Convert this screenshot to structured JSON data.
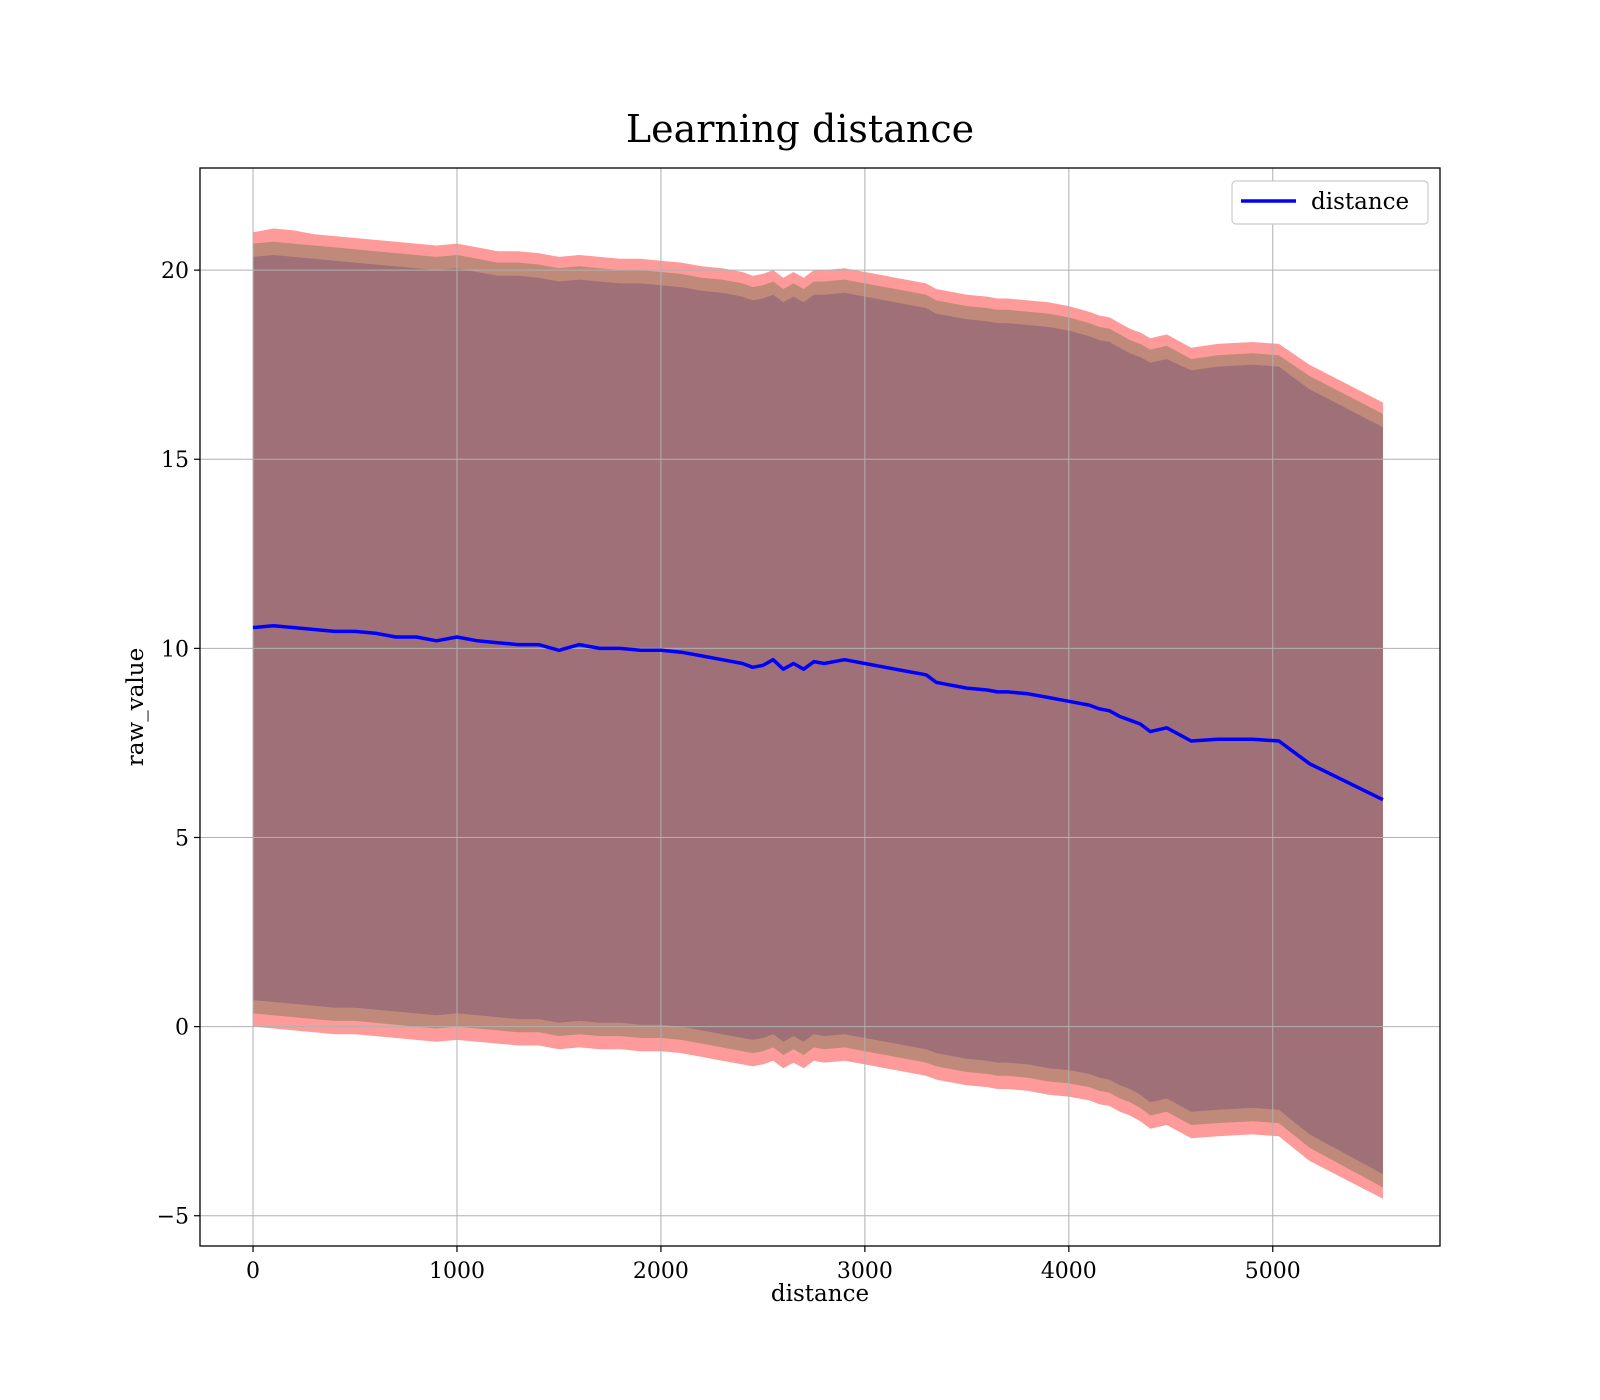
{
  "chart_data": {
    "type": "line",
    "title": "Learning distance",
    "xlabel": "distance",
    "ylabel": "raw_value",
    "xlim": [
      -260,
      5820
    ],
    "ylim": [
      -5.8,
      22.7
    ],
    "xticks": [
      0,
      1000,
      2000,
      3000,
      4000,
      5000
    ],
    "xtick_labels": [
      "0",
      "1000",
      "2000",
      "3000",
      "4000",
      "5000"
    ],
    "yticks": [
      -5,
      0,
      5,
      10,
      15,
      20
    ],
    "ytick_labels": [
      "−5",
      "0",
      "5",
      "10",
      "15",
      "20"
    ],
    "grid": true,
    "legend": {
      "position": "top-right",
      "entries": [
        "distance"
      ]
    },
    "colors": {
      "line": "#0000ff",
      "band_outer": "#ff9a9a",
      "band_middle": "#c08a7a",
      "band_inner": "#a07078",
      "grid": "#b0b0b0"
    },
    "series": [
      {
        "name": "distance",
        "x": [
          0,
          100,
          200,
          300,
          400,
          500,
          600,
          700,
          800,
          900,
          1000,
          1100,
          1200,
          1300,
          1400,
          1500,
          1600,
          1700,
          1800,
          1900,
          2000,
          2100,
          2200,
          2300,
          2400,
          2450,
          2500,
          2550,
          2600,
          2650,
          2700,
          2750,
          2800,
          2900,
          3000,
          3100,
          3200,
          3300,
          3350,
          3400,
          3500,
          3600,
          3650,
          3700,
          3800,
          3900,
          4000,
          4100,
          4150,
          4200,
          4250,
          4300,
          4350,
          4400,
          4480,
          4600,
          4730,
          4900,
          5030,
          5180,
          5540
        ],
        "values": [
          10.55,
          10.6,
          10.55,
          10.5,
          10.45,
          10.45,
          10.4,
          10.3,
          10.3,
          10.2,
          10.3,
          10.2,
          10.15,
          10.1,
          10.1,
          9.95,
          10.1,
          10.0,
          10.0,
          9.95,
          9.95,
          9.9,
          9.8,
          9.7,
          9.6,
          9.5,
          9.55,
          9.7,
          9.45,
          9.6,
          9.45,
          9.65,
          9.6,
          9.7,
          9.6,
          9.5,
          9.4,
          9.3,
          9.1,
          9.05,
          8.95,
          8.9,
          8.85,
          8.85,
          8.8,
          8.7,
          8.6,
          8.5,
          8.4,
          8.35,
          8.2,
          8.1,
          8.0,
          7.8,
          7.9,
          7.55,
          7.6,
          7.6,
          7.55,
          6.95,
          6.0
        ]
      }
    ],
    "band_outer": {
      "upper": [
        21.0,
        21.1,
        21.05,
        20.95,
        20.9,
        20.85,
        20.8,
        20.75,
        20.7,
        20.65,
        20.7,
        20.6,
        20.5,
        20.5,
        20.45,
        20.35,
        20.4,
        20.35,
        20.3,
        20.3,
        20.25,
        20.2,
        20.1,
        20.05,
        19.95,
        19.85,
        19.9,
        20.0,
        19.8,
        19.95,
        19.8,
        20.0,
        20.0,
        20.05,
        19.95,
        19.85,
        19.75,
        19.65,
        19.5,
        19.45,
        19.35,
        19.3,
        19.25,
        19.25,
        19.2,
        19.15,
        19.05,
        18.9,
        18.8,
        18.75,
        18.6,
        18.45,
        18.35,
        18.2,
        18.3,
        17.95,
        18.05,
        18.1,
        18.05,
        17.5,
        16.5
      ],
      "lower": [
        0.0,
        -0.05,
        -0.1,
        -0.15,
        -0.2,
        -0.2,
        -0.25,
        -0.3,
        -0.35,
        -0.4,
        -0.35,
        -0.4,
        -0.45,
        -0.5,
        -0.5,
        -0.6,
        -0.55,
        -0.6,
        -0.6,
        -0.65,
        -0.65,
        -0.7,
        -0.8,
        -0.9,
        -1.0,
        -1.05,
        -1.0,
        -0.9,
        -1.1,
        -0.95,
        -1.1,
        -0.9,
        -0.95,
        -0.9,
        -1.0,
        -1.1,
        -1.2,
        -1.3,
        -1.4,
        -1.45,
        -1.55,
        -1.6,
        -1.65,
        -1.65,
        -1.7,
        -1.8,
        -1.85,
        -1.95,
        -2.05,
        -2.1,
        -2.25,
        -2.35,
        -2.5,
        -2.7,
        -2.6,
        -2.95,
        -2.9,
        -2.85,
        -2.9,
        -3.55,
        -4.55
      ]
    },
    "band_middle": {
      "upper": [
        20.7,
        20.75,
        20.7,
        20.65,
        20.6,
        20.55,
        20.5,
        20.45,
        20.4,
        20.35,
        20.4,
        20.3,
        20.2,
        20.2,
        20.15,
        20.05,
        20.1,
        20.05,
        20.0,
        20.0,
        19.95,
        19.9,
        19.8,
        19.75,
        19.65,
        19.55,
        19.6,
        19.7,
        19.5,
        19.65,
        19.5,
        19.7,
        19.7,
        19.75,
        19.65,
        19.55,
        19.45,
        19.35,
        19.2,
        19.15,
        19.05,
        19.0,
        18.95,
        18.95,
        18.9,
        18.85,
        18.75,
        18.6,
        18.5,
        18.45,
        18.3,
        18.15,
        18.05,
        17.9,
        18.0,
        17.65,
        17.75,
        17.8,
        17.75,
        17.2,
        16.2
      ],
      "lower": [
        0.35,
        0.3,
        0.25,
        0.2,
        0.15,
        0.15,
        0.1,
        0.05,
        0.0,
        -0.05,
        0.0,
        -0.05,
        -0.1,
        -0.15,
        -0.15,
        -0.25,
        -0.2,
        -0.25,
        -0.25,
        -0.3,
        -0.3,
        -0.35,
        -0.45,
        -0.55,
        -0.65,
        -0.7,
        -0.65,
        -0.55,
        -0.75,
        -0.6,
        -0.75,
        -0.55,
        -0.6,
        -0.55,
        -0.65,
        -0.75,
        -0.85,
        -0.95,
        -1.05,
        -1.1,
        -1.2,
        -1.25,
        -1.3,
        -1.3,
        -1.35,
        -1.45,
        -1.5,
        -1.6,
        -1.7,
        -1.75,
        -1.9,
        -2.0,
        -2.15,
        -2.35,
        -2.25,
        -2.6,
        -2.55,
        -2.5,
        -2.55,
        -3.2,
        -4.25
      ]
    },
    "band_inner": {
      "upper": [
        20.35,
        20.4,
        20.35,
        20.3,
        20.25,
        20.2,
        20.15,
        20.1,
        20.05,
        20.0,
        20.05,
        19.95,
        19.85,
        19.85,
        19.8,
        19.7,
        19.75,
        19.7,
        19.65,
        19.65,
        19.6,
        19.55,
        19.45,
        19.4,
        19.3,
        19.2,
        19.25,
        19.35,
        19.15,
        19.3,
        19.15,
        19.35,
        19.35,
        19.4,
        19.3,
        19.2,
        19.1,
        19.0,
        18.85,
        18.8,
        18.7,
        18.65,
        18.6,
        18.6,
        18.55,
        18.5,
        18.4,
        18.25,
        18.15,
        18.1,
        17.95,
        17.8,
        17.7,
        17.55,
        17.65,
        17.35,
        17.45,
        17.5,
        17.45,
        16.85,
        15.85
      ],
      "lower": [
        0.7,
        0.65,
        0.6,
        0.55,
        0.5,
        0.5,
        0.45,
        0.4,
        0.35,
        0.3,
        0.35,
        0.3,
        0.25,
        0.2,
        0.2,
        0.1,
        0.15,
        0.1,
        0.1,
        0.05,
        0.05,
        0.0,
        -0.1,
        -0.2,
        -0.3,
        -0.35,
        -0.3,
        -0.2,
        -0.4,
        -0.25,
        -0.4,
        -0.2,
        -0.25,
        -0.2,
        -0.3,
        -0.4,
        -0.5,
        -0.6,
        -0.7,
        -0.75,
        -0.85,
        -0.9,
        -0.95,
        -0.95,
        -1.0,
        -1.1,
        -1.15,
        -1.25,
        -1.35,
        -1.4,
        -1.55,
        -1.65,
        -1.8,
        -2.0,
        -1.9,
        -2.25,
        -2.2,
        -2.15,
        -2.2,
        -2.85,
        -3.9
      ]
    }
  }
}
